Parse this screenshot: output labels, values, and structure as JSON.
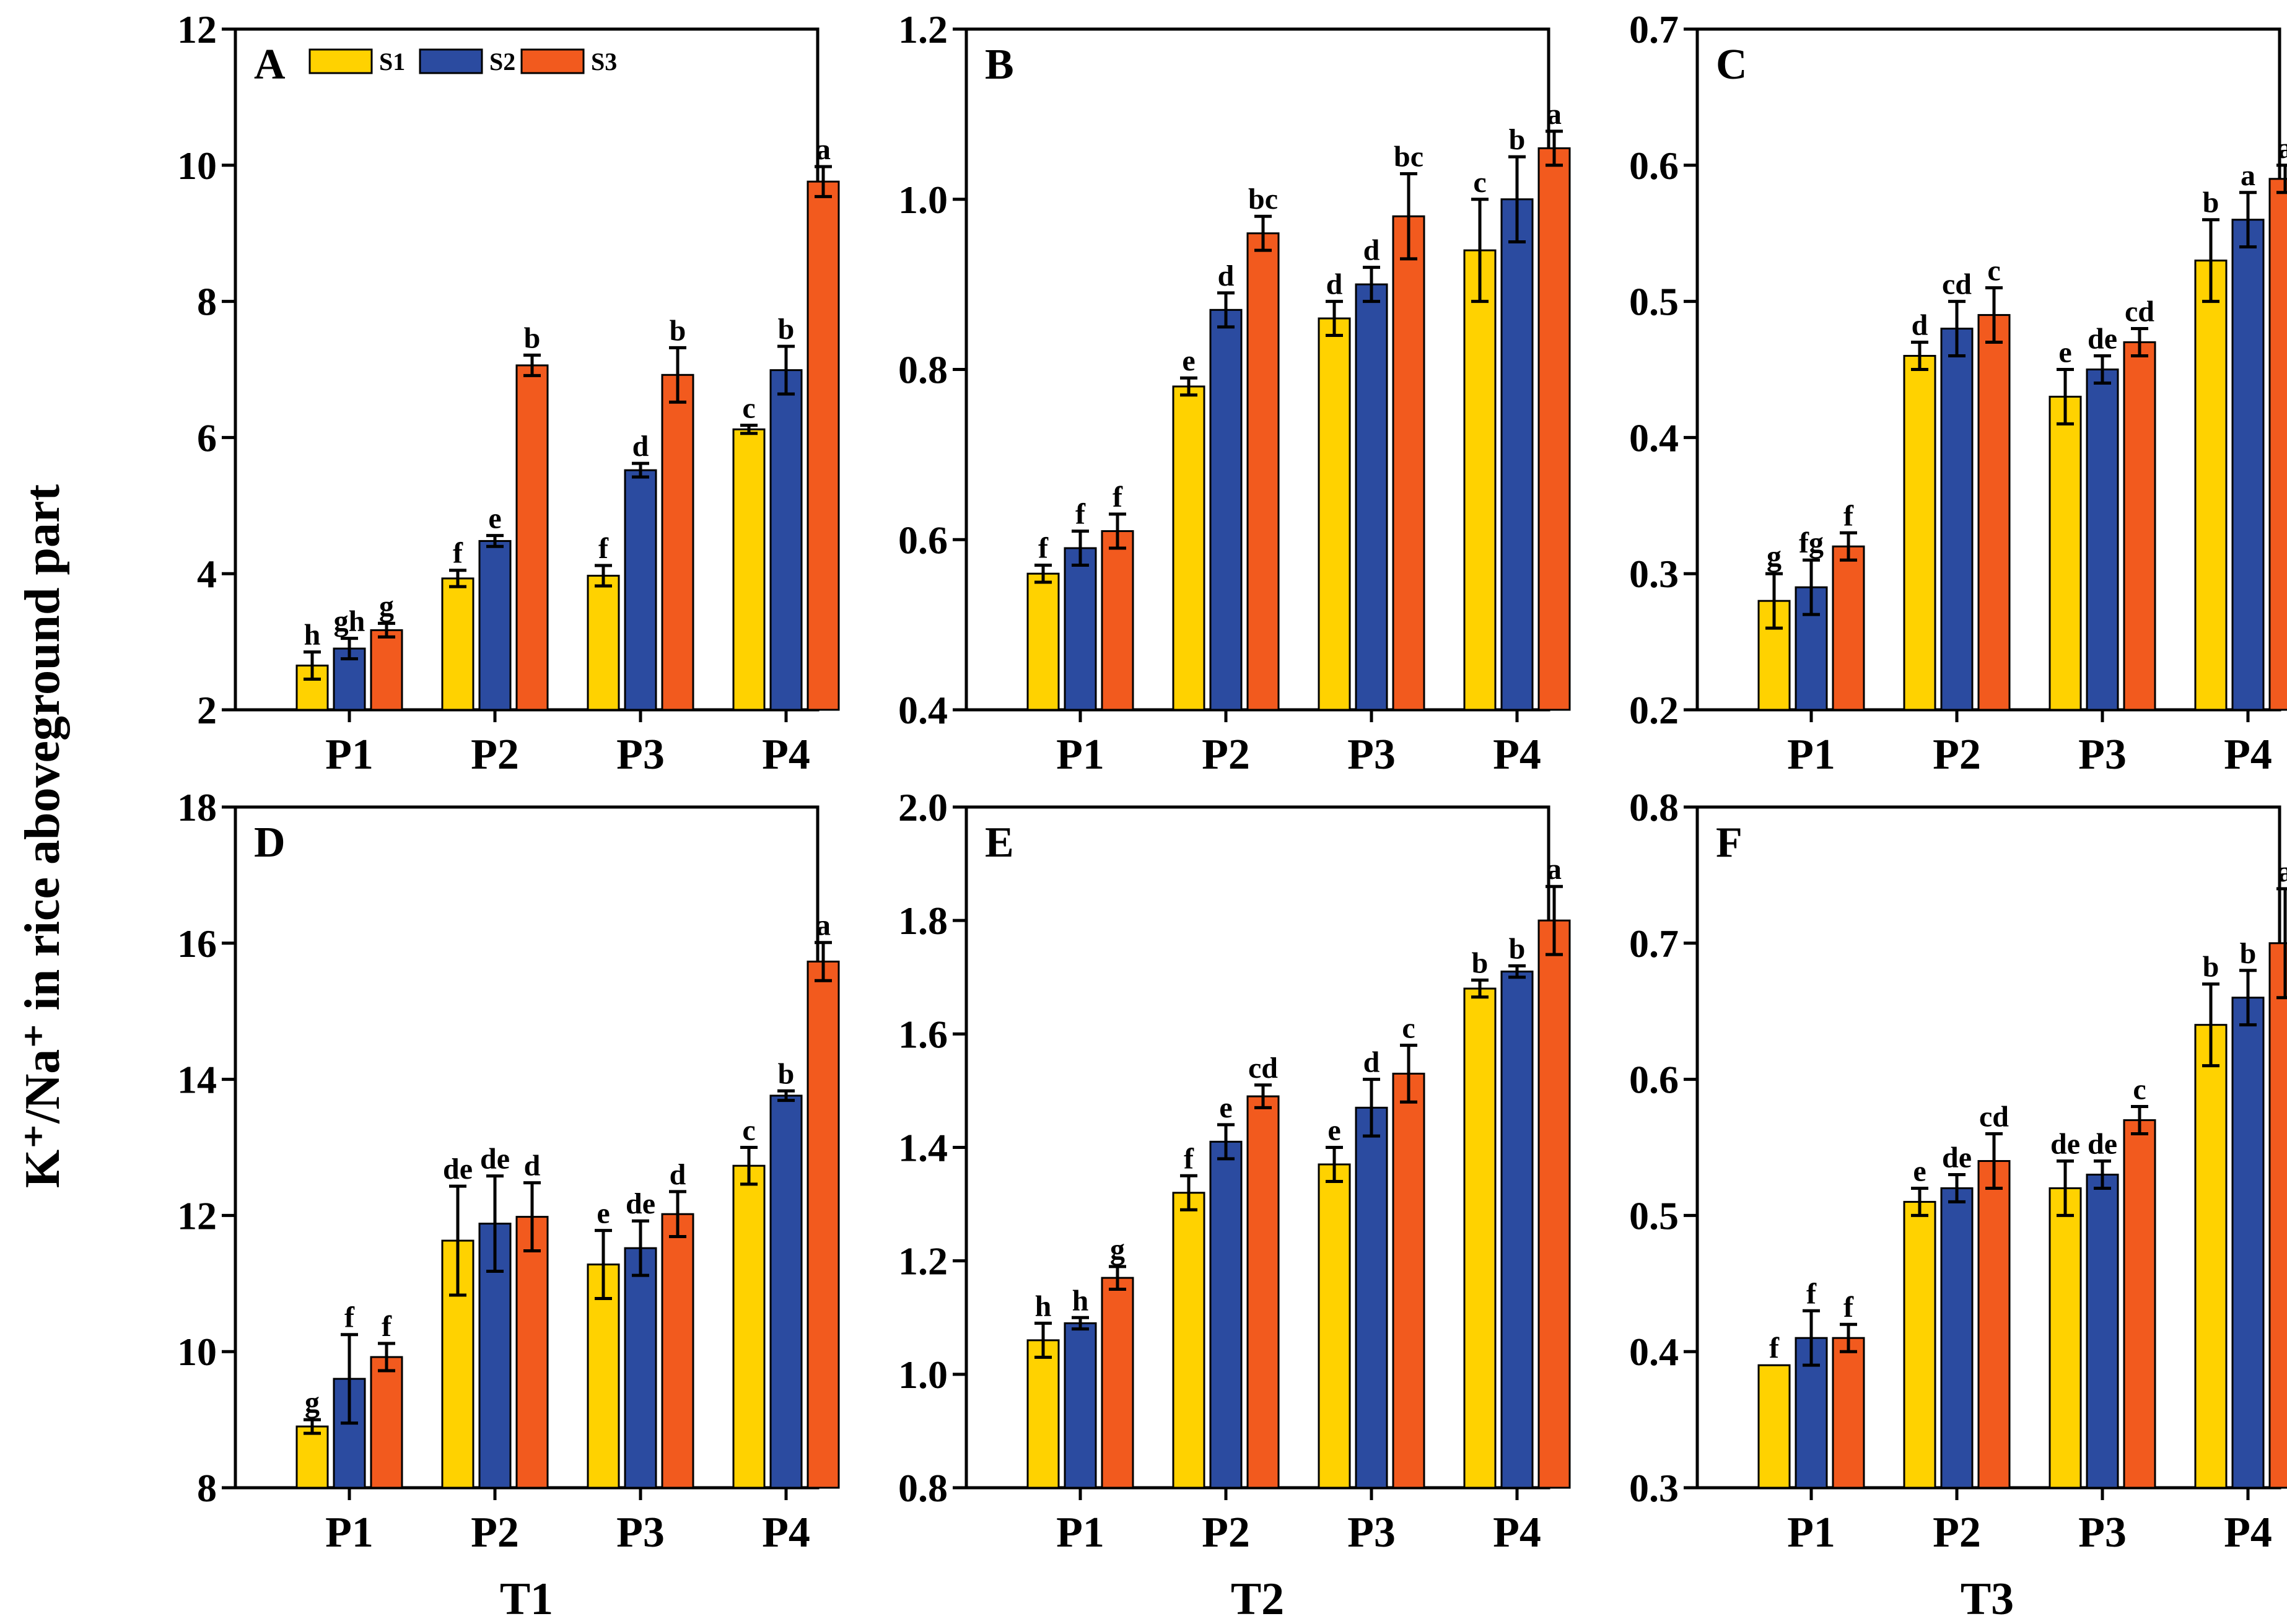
{
  "figure": {
    "ylabel": "K⁺/Na⁺ in rice aboveground part",
    "column_labels": [
      "T1",
      "T2",
      "T3"
    ]
  },
  "colors": {
    "S1": "#FFD200",
    "S2": "#2B4BA0",
    "S3": "#F25A1E"
  },
  "legend": [
    "S1",
    "S2",
    "S3"
  ],
  "chart_data": [
    {
      "type": "bar",
      "panel": "A",
      "group": "T1",
      "categories": [
        "P1",
        "P2",
        "P3",
        "P4"
      ],
      "ylim": [
        2,
        12
      ],
      "yticks": [
        2,
        4,
        6,
        8,
        10,
        12
      ],
      "ytick_labels": [
        "2",
        "4",
        "6",
        "8",
        "10",
        "12"
      ],
      "series": [
        {
          "name": "S1",
          "values": [
            2.65,
            3.93,
            3.97,
            6.12
          ],
          "errors": [
            0.2,
            0.12,
            0.15,
            0.06
          ],
          "labels": [
            "h",
            "f",
            "f",
            "c"
          ]
        },
        {
          "name": "S2",
          "values": [
            2.9,
            4.48,
            5.52,
            6.99
          ],
          "errors": [
            0.15,
            0.08,
            0.1,
            0.35
          ],
          "labels": [
            "gh",
            "e",
            "d",
            "b"
          ]
        },
        {
          "name": "S3",
          "values": [
            3.17,
            7.06,
            6.92,
            9.76
          ],
          "errors": [
            0.1,
            0.15,
            0.4,
            0.22
          ],
          "labels": [
            "g",
            "b",
            "b",
            "a"
          ]
        }
      ]
    },
    {
      "type": "bar",
      "panel": "B",
      "group": "T2",
      "categories": [
        "P1",
        "P2",
        "P3",
        "P4"
      ],
      "ylim": [
        0.4,
        1.2
      ],
      "yticks": [
        0.4,
        0.6,
        0.8,
        1.0,
        1.2
      ],
      "ytick_labels": [
        "0.4",
        "0.6",
        "0.8",
        "1.0",
        "1.2"
      ],
      "series": [
        {
          "name": "S1",
          "values": [
            0.56,
            0.78,
            0.86,
            0.94
          ],
          "errors": [
            0.01,
            0.01,
            0.02,
            0.06
          ],
          "labels": [
            "f",
            "e",
            "d",
            "c"
          ]
        },
        {
          "name": "S2",
          "values": [
            0.59,
            0.87,
            0.9,
            1.0
          ],
          "errors": [
            0.02,
            0.02,
            0.02,
            0.05
          ],
          "labels": [
            "f",
            "d",
            "d",
            "b"
          ]
        },
        {
          "name": "S3",
          "values": [
            0.61,
            0.96,
            0.98,
            1.06
          ],
          "errors": [
            0.02,
            0.02,
            0.05,
            0.02
          ],
          "labels": [
            "f",
            "bc",
            "bc",
            "a"
          ]
        }
      ]
    },
    {
      "type": "bar",
      "panel": "C",
      "group": "T3",
      "categories": [
        "P1",
        "P2",
        "P3",
        "P4"
      ],
      "ylim": [
        0.2,
        0.7
      ],
      "yticks": [
        0.2,
        0.3,
        0.4,
        0.5,
        0.6,
        0.7
      ],
      "ytick_labels": [
        "0.2",
        "0.3",
        "0.4",
        "0.5",
        "0.6",
        "0.7"
      ],
      "series": [
        {
          "name": "S1",
          "values": [
            0.28,
            0.46,
            0.43,
            0.53
          ],
          "errors": [
            0.02,
            0.01,
            0.02,
            0.03
          ],
          "labels": [
            "g",
            "d",
            "e",
            "b"
          ]
        },
        {
          "name": "S2",
          "values": [
            0.29,
            0.48,
            0.45,
            0.56
          ],
          "errors": [
            0.02,
            0.02,
            0.01,
            0.02
          ],
          "labels": [
            "fg",
            "cd",
            "de",
            "a"
          ]
        },
        {
          "name": "S3",
          "values": [
            0.32,
            0.49,
            0.47,
            0.59
          ],
          "errors": [
            0.01,
            0.02,
            0.01,
            0.01
          ],
          "labels": [
            "f",
            "c",
            "cd",
            "a"
          ]
        }
      ]
    },
    {
      "type": "bar",
      "panel": "D",
      "group": "T1",
      "categories": [
        "P1",
        "P2",
        "P3",
        "P4"
      ],
      "ylim": [
        8,
        18
      ],
      "yticks": [
        8,
        10,
        12,
        14,
        16,
        18
      ],
      "ytick_labels": [
        "8",
        "10",
        "12",
        "14",
        "16",
        "18"
      ],
      "series": [
        {
          "name": "S1",
          "values": [
            8.9,
            11.63,
            11.28,
            12.73
          ],
          "errors": [
            0.1,
            0.8,
            0.5,
            0.27
          ],
          "labels": [
            "g",
            "de",
            "e",
            "c"
          ]
        },
        {
          "name": "S2",
          "values": [
            9.6,
            11.88,
            11.52,
            13.76
          ],
          "errors": [
            0.65,
            0.7,
            0.4,
            0.07
          ],
          "labels": [
            "f",
            "de",
            "de",
            "b"
          ]
        },
        {
          "name": "S3",
          "values": [
            9.92,
            11.98,
            12.02,
            15.73
          ],
          "errors": [
            0.2,
            0.5,
            0.33,
            0.28
          ],
          "labels": [
            "f",
            "d",
            "d",
            "a"
          ]
        }
      ]
    },
    {
      "type": "bar",
      "panel": "E",
      "group": "T2",
      "categories": [
        "P1",
        "P2",
        "P3",
        "P4"
      ],
      "ylim": [
        0.8,
        2.0
      ],
      "yticks": [
        0.8,
        1.0,
        1.2,
        1.4,
        1.6,
        1.8,
        2.0
      ],
      "ytick_labels": [
        "0.8",
        "1.0",
        "1.2",
        "1.4",
        "1.6",
        "1.8",
        "2.0"
      ],
      "series": [
        {
          "name": "S1",
          "values": [
            1.06,
            1.32,
            1.37,
            1.68
          ],
          "errors": [
            0.03,
            0.03,
            0.03,
            0.015
          ],
          "labels": [
            "h",
            "f",
            "e",
            "b"
          ]
        },
        {
          "name": "S2",
          "values": [
            1.09,
            1.41,
            1.47,
            1.71
          ],
          "errors": [
            0.01,
            0.03,
            0.05,
            0.01
          ],
          "labels": [
            "h",
            "e",
            "d",
            "b"
          ]
        },
        {
          "name": "S3",
          "values": [
            1.17,
            1.49,
            1.53,
            1.8
          ],
          "errors": [
            0.02,
            0.02,
            0.05,
            0.06
          ],
          "labels": [
            "g",
            "cd",
            "c",
            "a"
          ]
        }
      ]
    },
    {
      "type": "bar",
      "panel": "F",
      "group": "T3",
      "categories": [
        "P1",
        "P2",
        "P3",
        "P4"
      ],
      "ylim": [
        0.3,
        0.8
      ],
      "yticks": [
        0.3,
        0.4,
        0.5,
        0.6,
        0.7,
        0.8
      ],
      "ytick_labels": [
        "0.3",
        "0.4",
        "0.5",
        "0.6",
        "0.7",
        "0.8"
      ],
      "series": [
        {
          "name": "S1",
          "values": [
            0.39,
            0.51,
            0.52,
            0.64
          ],
          "errors": [
            0.0,
            0.01,
            0.02,
            0.03
          ],
          "labels": [
            "f",
            "e",
            "de",
            "b"
          ]
        },
        {
          "name": "S2",
          "values": [
            0.41,
            0.52,
            0.53,
            0.66
          ],
          "errors": [
            0.02,
            0.01,
            0.01,
            0.02
          ],
          "labels": [
            "f",
            "de",
            "de",
            "b"
          ]
        },
        {
          "name": "S3",
          "values": [
            0.41,
            0.54,
            0.57,
            0.7
          ],
          "errors": [
            0.01,
            0.02,
            0.01,
            0.04
          ],
          "labels": [
            "f",
            "cd",
            "c",
            "a"
          ]
        }
      ]
    }
  ]
}
